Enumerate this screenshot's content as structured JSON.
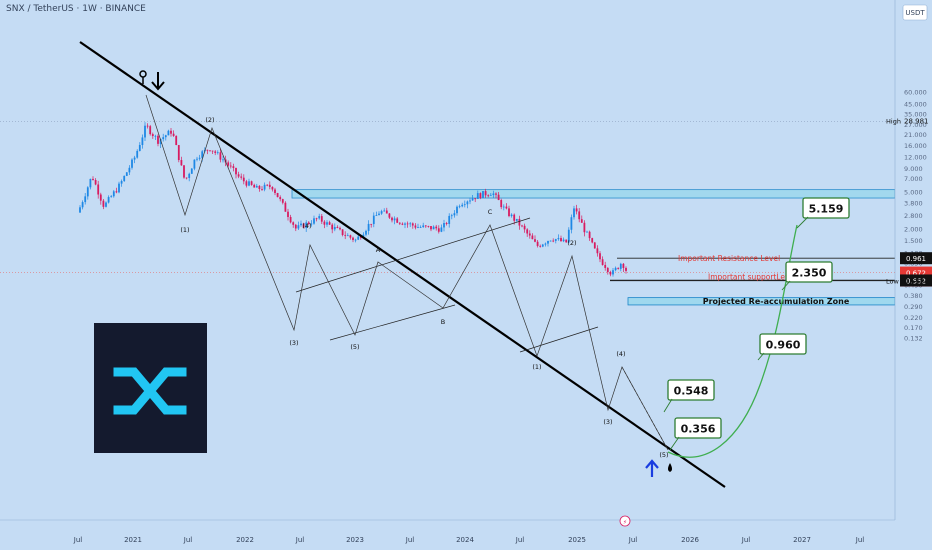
{
  "header": {
    "symbol": "SNX / TetherUS · 1W · BINANCE",
    "currency": "USDT"
  },
  "colors": {
    "background": "#c5dcf4",
    "up_candle": "#1e88e5",
    "down_candle": "#d81b60",
    "zone_fill": "#9fd8ee",
    "zone_border": "#1b86c8",
    "target_box_border": "#2e7d32",
    "resistance_text": "#e53935",
    "logo_bg": "#141a2e",
    "logo_accent": "#21c6f3"
  },
  "price_axis": {
    "ticks": [
      "60.000",
      "45.000",
      "35.000",
      "27.000",
      "21.000",
      "16.000",
      "12.000",
      "9.000",
      "7.000",
      "5.000",
      "3.800",
      "2.800",
      "2.000",
      "1.500",
      "1.100",
      "0.850",
      "0.640",
      "0.490",
      "0.380",
      "0.290",
      "0.220",
      "0.170",
      "0.132"
    ],
    "labels": [
      {
        "caption": "High",
        "value": "28.981",
        "style": "plain"
      },
      {
        "caption": "",
        "value": "0.961",
        "style": "dark"
      },
      {
        "caption": "",
        "value": "0.672",
        "style": "red",
        "sub": "3d 19h"
      },
      {
        "caption": "",
        "value": "0.552",
        "style": "dark"
      },
      {
        "caption": "Low",
        "value": "0.548",
        "style": "plain"
      }
    ]
  },
  "time_axis": {
    "ticks": [
      "Jul",
      "2021",
      "Jul",
      "2022",
      "Jul",
      "2023",
      "Jul",
      "2024",
      "Jul",
      "2025",
      "Jul",
      "2026",
      "Jul",
      "2027",
      "Jul"
    ]
  },
  "wave_labels": [
    "(2)",
    "(1)",
    "(3)",
    "(4)",
    "(5)",
    "A",
    "B",
    "C",
    "(2)",
    "(1)",
    "(3)",
    "(4)",
    "(5)"
  ],
  "annotations": {
    "resistance": "Important Resistance Level",
    "support": "Important supportLevel",
    "zone": "Projected Re-accumulation Zone"
  },
  "targets": [
    "5.159",
    "2.350",
    "0.960",
    "0.548",
    "0.356"
  ],
  "chart_data": {
    "type": "candlestick",
    "scale": "log",
    "x": [
      "2020-07",
      "2020-10",
      "2021-01",
      "2021-04",
      "2021-07",
      "2021-10",
      "2022-01",
      "2022-04",
      "2022-07",
      "2022-10",
      "2023-01",
      "2023-04",
      "2023-07",
      "2023-10",
      "2024-01",
      "2024-04",
      "2024-07",
      "2024-10",
      "2025-01",
      "2025-04",
      "2025-06"
    ],
    "close": [
      3.5,
      4.5,
      7,
      22,
      7,
      10,
      5.5,
      3,
      2,
      1.6,
      2.5,
      2.7,
      2.1,
      2,
      4.5,
      4.1,
      1.9,
      1.2,
      2.7,
      0.75,
      0.672
    ],
    "ylim": [
      0.132,
      60
    ],
    "levels": {
      "high": 28.981,
      "resistance": 0.961,
      "last": 0.672,
      "support": 0.552,
      "low": 0.548
    },
    "projection": [
      0.356,
      0.548,
      0.96,
      2.35,
      5.159
    ],
    "zone_range": [
      0.3,
      0.36
    ],
    "resistance_box": [
      4.3,
      5.3
    ]
  }
}
